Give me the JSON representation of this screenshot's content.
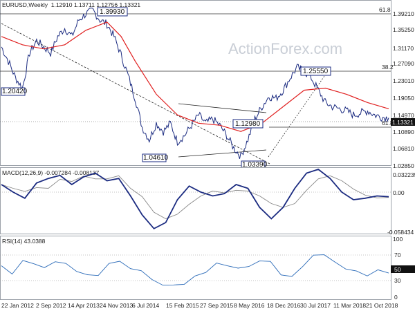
{
  "chart_data": [
    {
      "type": "line",
      "instrument": "EURUSD",
      "timeframe": "Weekly",
      "ohlc": {
        "open": "1.12910",
        "high": "1.13711",
        "low": "1.12756",
        "close": "1.13321"
      },
      "ylim": [
        1.02,
        1.405
      ],
      "yticks": [
        "1.39210",
        "1.35250",
        "1.31170",
        "1.27090",
        "1.23010",
        "1.19050",
        "1.14970",
        "1.10890",
        "1.06810",
        "1.02850"
      ],
      "last_price": "1.13321",
      "xticks": [
        "22 Jan 2012",
        "2 Sep 2012",
        "14 Apr 2013",
        "24 Nov 2013",
        "6 Jul 2014",
        "15 Feb 2015",
        "27 Sep 2015",
        "8 May 2016",
        "18 Dec 2016",
        "30 Jul 2017",
        "11 Mar 2018",
        "21 Oct 2018"
      ],
      "series": [
        {
          "color": "#1a2a80",
          "x": [
            0,
            8,
            16,
            24,
            32,
            40,
            48,
            56,
            64,
            72,
            80,
            88,
            96,
            104,
            112,
            120,
            128,
            136,
            144,
            152,
            160,
            168,
            176,
            184,
            192,
            200,
            208,
            216,
            224,
            232,
            240,
            248,
            256,
            264,
            272,
            280,
            288,
            296,
            304,
            312,
            320,
            328,
            336
          ],
          "values": [
            1.305,
            1.27,
            1.23,
            1.205,
            1.29,
            1.32,
            1.305,
            1.29,
            1.33,
            1.35,
            1.33,
            1.37,
            1.385,
            1.393,
            1.37,
            1.36,
            1.33,
            1.285,
            1.235,
            1.18,
            1.11,
            1.08,
            1.12,
            1.1,
            1.12,
            1.075,
            1.09,
            1.115,
            1.14,
            1.12,
            1.13,
            1.115,
            1.09,
            1.06,
            1.04,
            1.08,
            1.13,
            1.16,
            1.185,
            1.18,
            1.2,
            1.23,
            1.255
          ]
        },
        {
          "color": "#e02020",
          "x": [
            0,
            24,
            48,
            72,
            96,
            120,
            136,
            152,
            176,
            200,
            224,
            248,
            272,
            296,
            320,
            344,
            368,
            392,
            416,
            440
          ],
          "values": [
            1.33,
            1.31,
            1.3,
            1.31,
            1.345,
            1.365,
            1.33,
            1.27,
            1.19,
            1.14,
            1.12,
            1.115,
            1.1,
            1.12,
            1.16,
            1.2,
            1.205,
            1.19,
            1.17,
            1.155
          ]
        }
      ],
      "labels": [
        "1.39930",
        "1.25550",
        "1.20420",
        "1.12980",
        "1.04610",
        "1.03390"
      ],
      "fib_labels": [
        "61.8",
        "38.2",
        "61.8"
      ],
      "watermark": "ActionForex.com"
    },
    {
      "type": "line",
      "title": "MACD(12,26,9) -0.007284 -0.008137",
      "ylim": [
        -0.06,
        0.035
      ],
      "yticks": [
        "0.032235",
        "0.00",
        "-0.058434"
      ],
      "last_price": "0.00"
    },
    {
      "type": "line",
      "title": "RSI(14) 43.0388",
      "ylim": [
        0,
        100
      ],
      "yticks": [
        "100",
        "70",
        "50",
        "30",
        "0"
      ],
      "last_price": "50"
    }
  ]
}
